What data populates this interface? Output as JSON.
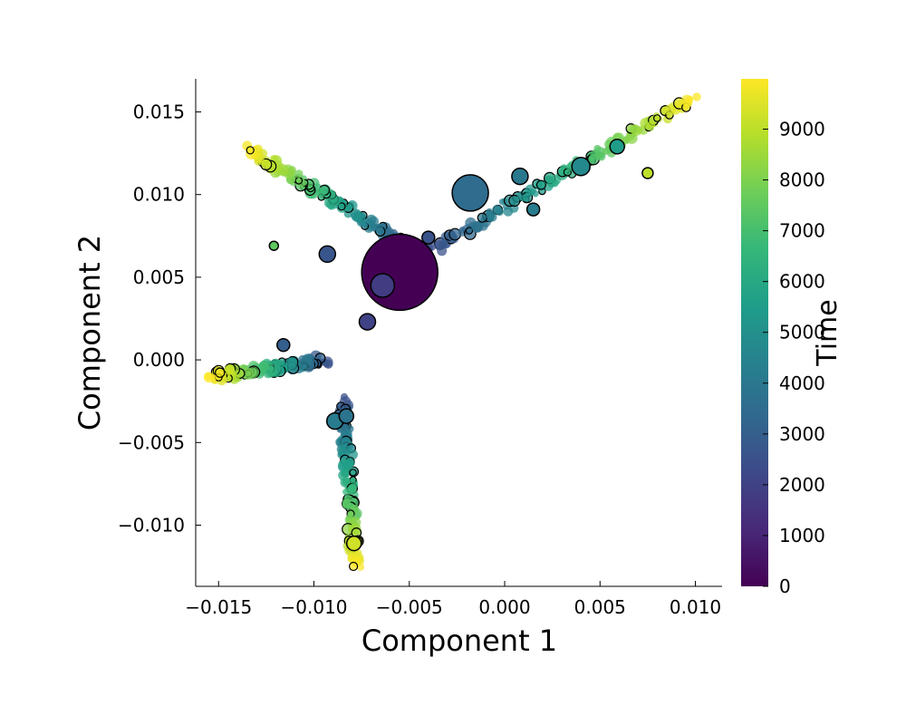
{
  "chart_data": {
    "type": "scatter",
    "title": "",
    "xlabel": "Component 1",
    "ylabel": "Component 2",
    "xlim": [
      -0.0162,
      0.0114
    ],
    "ylim": [
      -0.0137,
      0.017
    ],
    "x_ticks": [
      -0.015,
      -0.01,
      -0.005,
      0.0,
      0.005,
      0.01
    ],
    "x_tick_labels": [
      "−0.015",
      "−0.010",
      "−0.005",
      "0.000",
      "0.005",
      "0.010"
    ],
    "y_ticks": [
      -0.01,
      -0.005,
      0.0,
      0.005,
      0.01,
      0.015
    ],
    "y_tick_labels": [
      "−0.010",
      "−0.005",
      "0.000",
      "0.005",
      "0.010",
      "0.015"
    ],
    "grid": false,
    "colorbar": {
      "label": "Time",
      "colormap": "viridis",
      "range": [
        0,
        9990
      ],
      "ticks": [
        0,
        1000,
        2000,
        3000,
        4000,
        5000,
        6000,
        7000,
        8000,
        9000
      ],
      "tick_labels": [
        "0",
        "1000",
        "2000",
        "3000",
        "4000",
        "5000",
        "6000",
        "7000",
        "8000",
        "9000"
      ]
    },
    "branches": [
      {
        "from": [
          -0.0045,
          0.0065
        ],
        "to": [
          -0.0135,
          0.0128
        ],
        "t": [
          2000,
          9990
        ]
      },
      {
        "from": [
          -0.0045,
          0.0062
        ],
        "to": [
          0.0099,
          0.0158
        ],
        "t": [
          2000,
          9990
        ]
      },
      {
        "from": [
          -0.0095,
          0.0
        ],
        "to": [
          -0.0153,
          -0.001
        ],
        "t": [
          2500,
          9990
        ]
      },
      {
        "from": [
          -0.0085,
          -0.0025
        ],
        "to": [
          -0.0078,
          -0.0125
        ],
        "t": [
          2500,
          9990
        ]
      }
    ],
    "highlight_points": [
      {
        "x": -0.0055,
        "y": 0.0053,
        "t": 0,
        "size": 42
      },
      {
        "x": -0.0018,
        "y": 0.0101,
        "t": 3500,
        "size": 20
      },
      {
        "x": -0.0093,
        "y": 0.0064,
        "t": 2700,
        "size": 9
      },
      {
        "x": -0.0072,
        "y": 0.0023,
        "t": 2000,
        "size": 9
      },
      {
        "x": -0.0064,
        "y": 0.0045,
        "t": 1800,
        "size": 13
      },
      {
        "x": 0.0008,
        "y": 0.0111,
        "t": 4000,
        "size": 9
      },
      {
        "x": 0.004,
        "y": 0.0117,
        "t": 4700,
        "size": 10
      },
      {
        "x": 0.0015,
        "y": 0.0091,
        "t": 4200,
        "size": 7
      },
      {
        "x": 0.0059,
        "y": 0.0129,
        "t": 5500,
        "size": 8
      },
      {
        "x": -0.0116,
        "y": 0.0009,
        "t": 3000,
        "size": 7
      },
      {
        "x": -0.0089,
        "y": -0.0037,
        "t": 4200,
        "size": 9
      },
      {
        "x": -0.0083,
        "y": -0.0034,
        "t": 3800,
        "size": 8
      },
      {
        "x": -0.0079,
        "y": -0.0111,
        "t": 9300,
        "size": 8
      },
      {
        "x": -0.004,
        "y": 0.0074,
        "t": 2600,
        "size": 7
      },
      {
        "x": -0.0121,
        "y": 0.0069,
        "t": 7500,
        "size": 5
      },
      {
        "x": 0.0075,
        "y": 0.0113,
        "t": 9000,
        "size": 6
      }
    ]
  }
}
